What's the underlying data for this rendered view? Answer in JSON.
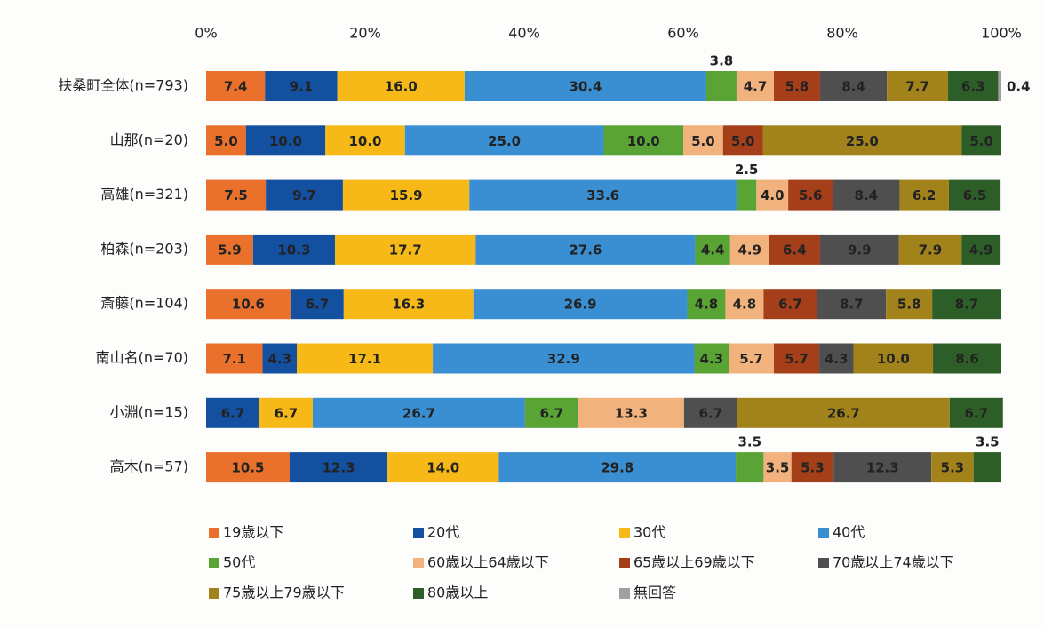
{
  "chart_data": {
    "type": "stacked_bar_horizontal",
    "categories": [
      "扶桑町全体(n=793)",
      "山那(n=20)",
      "高雄(n=321)",
      "柏森(n=203)",
      "斎藤(n=104)",
      "南山名(n=70)",
      "小淵(n=15)",
      "高木(n=57)"
    ],
    "xlim": [
      0,
      100
    ],
    "xticks": [
      {
        "value": 0,
        "label": "0%"
      },
      {
        "value": 20,
        "label": "20%"
      },
      {
        "value": 40,
        "label": "40%"
      },
      {
        "value": 60,
        "label": "60%"
      },
      {
        "value": 80,
        "label": "80%"
      },
      {
        "value": 100,
        "label": "100%"
      }
    ],
    "series": [
      {
        "name": "19歳以下",
        "color": "#e9712b",
        "values": [
          7.4,
          5.0,
          7.5,
          5.9,
          10.6,
          7.1,
          null,
          10.5
        ],
        "value_labels": [
          "7.4",
          "5.0",
          "7.5",
          "5.9",
          "10.6",
          "7.1",
          null,
          "10.5"
        ]
      },
      {
        "name": "20代",
        "color": "#1450a0",
        "values": [
          9.1,
          10.0,
          9.7,
          10.3,
          6.7,
          4.3,
          6.7,
          12.3
        ],
        "value_labels": [
          "9.1",
          "10.0",
          "9.7",
          "10.3",
          "6.7",
          "4.3",
          "6.7",
          "12.3"
        ]
      },
      {
        "name": "30代",
        "color": "#f7b917",
        "values": [
          16.0,
          10.0,
          15.9,
          17.7,
          16.3,
          17.1,
          6.7,
          14.0
        ],
        "value_labels": [
          "16.0",
          "10.0",
          "15.9",
          "17.7",
          "16.3",
          "17.1",
          "6.7",
          "14.0"
        ]
      },
      {
        "name": "40代",
        "color": "#3a8fd2",
        "values": [
          30.4,
          25.0,
          33.6,
          27.6,
          26.9,
          32.9,
          26.7,
          29.8
        ],
        "value_labels": [
          "30.4",
          "25.0",
          "33.6",
          "27.6",
          "26.9",
          "32.9",
          "26.7",
          "29.8"
        ]
      },
      {
        "name": "50代",
        "color": "#5aa335",
        "values": [
          3.8,
          10.0,
          2.5,
          4.4,
          4.8,
          4.3,
          6.7,
          3.5
        ],
        "value_labels": [
          "3.8",
          "10.0",
          "2.5",
          "4.4",
          "4.8",
          "4.3",
          "6.7",
          "3.5"
        ]
      },
      {
        "name": "60歳以上64歳以下",
        "color": "#f1b27d",
        "values": [
          4.7,
          5.0,
          4.0,
          4.9,
          4.8,
          5.7,
          13.3,
          3.5
        ],
        "value_labels": [
          "4.7",
          "5.0",
          "4.0",
          "4.9",
          "4.8",
          "5.7",
          "13.3",
          "3.5"
        ]
      },
      {
        "name": "65歳以上69歳以下",
        "color": "#a53f19",
        "values": [
          5.8,
          5.0,
          5.6,
          6.4,
          6.7,
          5.7,
          null,
          5.3
        ],
        "value_labels": [
          "5.8",
          "5.0",
          "5.6",
          "6.4",
          "6.7",
          "5.7",
          null,
          "5.3"
        ]
      },
      {
        "name": "70歳以上74歳以下",
        "color": "#4f4f4f",
        "values": [
          8.4,
          null,
          8.4,
          9.9,
          8.7,
          4.3,
          6.7,
          12.3
        ],
        "value_labels": [
          "8.4",
          null,
          "8.4",
          "9.9",
          "8.7",
          "4.3",
          "6.7",
          "12.3"
        ]
      },
      {
        "name": "75歳以上79歳以下",
        "color": "#a2831b",
        "values": [
          7.7,
          25.0,
          6.2,
          7.9,
          5.8,
          10.0,
          26.7,
          5.3
        ],
        "value_labels": [
          "7.7",
          "25.0",
          "6.2",
          "7.9",
          "5.8",
          "10.0",
          "26.7",
          "5.3"
        ]
      },
      {
        "name": "80歳以上",
        "color": "#2e5e27",
        "values": [
          6.3,
          5.0,
          6.5,
          4.9,
          8.7,
          8.6,
          6.7,
          3.5
        ],
        "value_labels": [
          "6.3",
          "5.0",
          "6.5",
          "4.9",
          "8.7",
          "8.6",
          "6.7",
          "3.5"
        ]
      },
      {
        "name": "無回答",
        "color": "#a0a0a0",
        "values": [
          0.4,
          null,
          null,
          null,
          null,
          null,
          null,
          null
        ],
        "value_labels": [
          "0.4",
          null,
          null,
          null,
          null,
          null,
          null,
          null
        ]
      }
    ]
  }
}
